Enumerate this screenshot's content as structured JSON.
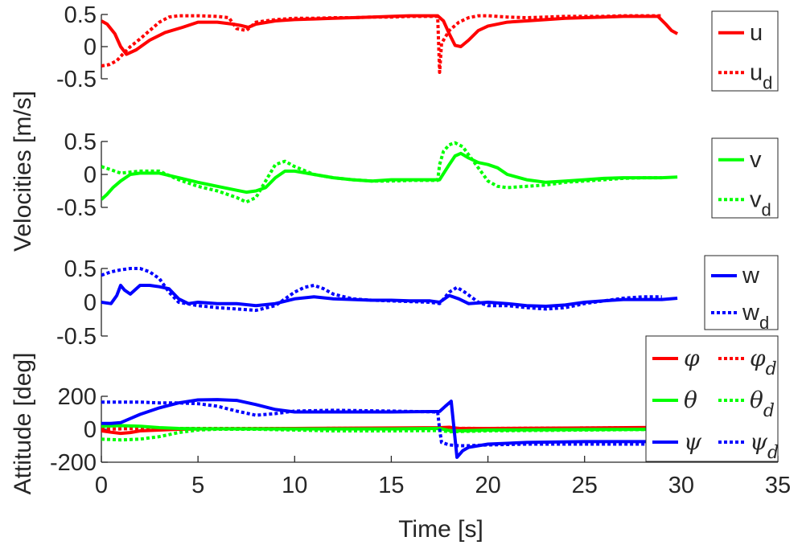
{
  "chart_data": [
    {
      "type": "line",
      "panel": "u",
      "title": "",
      "xlabel": "",
      "ylabel": "",
      "xlim": [
        0,
        35
      ],
      "ylim": [
        -0.5,
        0.5
      ],
      "yticks": [
        0.5,
        0,
        -0.5
      ],
      "ytick_labels": [
        "0.5",
        "0",
        "-0.5"
      ],
      "legend": "top-right",
      "series": [
        {
          "name": "u",
          "label_main": "u",
          "label_sub": "",
          "color": "#ff0000",
          "style": "solid",
          "x": [
            0,
            0.3,
            0.7,
            1.0,
            1.3,
            1.8,
            2.5,
            3.3,
            4.2,
            5.0,
            6.0,
            6.8,
            7.2,
            7.6,
            8.0,
            9.0,
            10.0,
            11.0,
            12.0,
            13.0,
            14.0,
            15.0,
            16.0,
            17.0,
            17.4,
            17.7,
            18.0,
            18.3,
            18.6,
            19.0,
            19.5,
            20.0,
            21.0,
            22.0,
            23.0,
            24.0,
            25.0,
            26.0,
            27.0,
            28.0,
            28.8,
            29.2,
            29.5,
            29.8
          ],
          "y": [
            0.4,
            0.35,
            0.2,
            0.0,
            -0.12,
            -0.05,
            0.1,
            0.22,
            0.3,
            0.38,
            0.38,
            0.35,
            0.33,
            0.3,
            0.35,
            0.4,
            0.42,
            0.43,
            0.44,
            0.45,
            0.46,
            0.47,
            0.48,
            0.48,
            0.48,
            0.4,
            0.2,
            0.02,
            0.0,
            0.1,
            0.25,
            0.32,
            0.38,
            0.4,
            0.42,
            0.44,
            0.45,
            0.46,
            0.47,
            0.47,
            0.47,
            0.35,
            0.25,
            0.2
          ]
        },
        {
          "name": "u_d",
          "label_main": "u",
          "label_sub": "d",
          "color": "#ff0000",
          "style": "dotted",
          "x": [
            0,
            0.4,
            0.8,
            1.1,
            1.5,
            2.0,
            2.5,
            3.0,
            3.5,
            4.0,
            5.0,
            6.0,
            6.6,
            7.0,
            7.5,
            8.0,
            9.0,
            10.0,
            11.0,
            12.0,
            13.0,
            14.0,
            15.0,
            16.0,
            17.0,
            17.4,
            17.5,
            17.6,
            18.0,
            18.5,
            19.0,
            19.5,
            20.0,
            21.0,
            22.0,
            23.0,
            24.0,
            25.0,
            26.0,
            27.0,
            28.0,
            29.0
          ],
          "y": [
            -0.3,
            -0.28,
            -0.22,
            -0.12,
            0.0,
            0.12,
            0.25,
            0.38,
            0.46,
            0.48,
            0.48,
            0.47,
            0.45,
            0.28,
            0.25,
            0.38,
            0.42,
            0.44,
            0.44,
            0.45,
            0.45,
            0.46,
            0.46,
            0.47,
            0.47,
            0.47,
            -0.4,
            0.05,
            0.25,
            0.38,
            0.45,
            0.48,
            0.48,
            0.46,
            0.45,
            0.46,
            0.47,
            0.47,
            0.47,
            0.48,
            0.48,
            0.48
          ]
        }
      ]
    },
    {
      "type": "line",
      "panel": "v",
      "title": "",
      "xlabel": "",
      "ylabel": "",
      "xlim": [
        0,
        35
      ],
      "ylim": [
        -0.5,
        0.5
      ],
      "yticks": [
        0.5,
        0,
        -0.5
      ],
      "ytick_labels": [
        "0.5",
        "0",
        "-0.5"
      ],
      "legend": "top-right",
      "series": [
        {
          "name": "v",
          "label_main": "v",
          "label_sub": "",
          "color": "#00ff00",
          "style": "solid",
          "x": [
            0,
            0.3,
            0.6,
            1.0,
            1.5,
            2.0,
            3.0,
            4.0,
            5.0,
            6.0,
            7.0,
            7.5,
            8.0,
            8.5,
            9.0,
            9.5,
            10.0,
            11.0,
            12.0,
            13.0,
            14.0,
            15.0,
            16.0,
            17.0,
            17.5,
            18.0,
            18.3,
            18.6,
            19.0,
            19.5,
            20.0,
            20.5,
            21.0,
            22.0,
            23.0,
            24.0,
            25.0,
            26.0,
            27.0,
            28.0,
            29.0,
            29.8
          ],
          "y": [
            -0.38,
            -0.3,
            -0.2,
            -0.1,
            0.0,
            0.02,
            0.02,
            -0.05,
            -0.12,
            -0.18,
            -0.24,
            -0.27,
            -0.25,
            -0.2,
            -0.05,
            0.05,
            0.05,
            0.0,
            -0.05,
            -0.08,
            -0.1,
            -0.08,
            -0.08,
            -0.08,
            -0.08,
            0.15,
            0.28,
            0.32,
            0.25,
            0.18,
            0.15,
            0.1,
            0.0,
            -0.08,
            -0.12,
            -0.1,
            -0.08,
            -0.06,
            -0.05,
            -0.05,
            -0.05,
            -0.04
          ]
        },
        {
          "name": "v_d",
          "label_main": "v",
          "label_sub": "d",
          "color": "#00ff00",
          "style": "dotted",
          "x": [
            0,
            0.4,
            1.0,
            2.0,
            3.0,
            4.0,
            5.0,
            6.0,
            7.0,
            7.5,
            8.0,
            8.5,
            9.0,
            9.5,
            10.0,
            11.0,
            12.0,
            13.0,
            14.0,
            15.0,
            16.0,
            17.0,
            17.4,
            17.5,
            17.7,
            18.0,
            18.3,
            18.7,
            19.0,
            19.5,
            20.0,
            20.5,
            21.0,
            22.0,
            23.0,
            24.0,
            25.0,
            26.0,
            27.0,
            28.0,
            29.0
          ],
          "y": [
            0.12,
            0.08,
            0.02,
            0.05,
            0.05,
            -0.08,
            -0.18,
            -0.25,
            -0.35,
            -0.42,
            -0.35,
            -0.1,
            0.15,
            0.2,
            0.12,
            0.0,
            -0.05,
            -0.08,
            -0.1,
            -0.1,
            -0.09,
            -0.09,
            -0.09,
            0.15,
            0.35,
            0.45,
            0.48,
            0.42,
            0.3,
            0.1,
            -0.1,
            -0.18,
            -0.2,
            -0.18,
            -0.16,
            -0.12,
            -0.1,
            -0.08,
            -0.06,
            -0.05,
            -0.05
          ]
        }
      ]
    },
    {
      "type": "line",
      "panel": "w",
      "title": "",
      "xlabel": "",
      "ylabel": "",
      "xlim": [
        0,
        35
      ],
      "ylim": [
        -0.5,
        0.5
      ],
      "yticks": [
        0.5,
        0,
        -0.5
      ],
      "ytick_labels": [
        "0.5",
        "0",
        "-0.5"
      ],
      "legend": "top-right",
      "series": [
        {
          "name": "w",
          "label_main": "w",
          "label_sub": "",
          "color": "#0000ff",
          "style": "solid",
          "x": [
            0,
            0.5,
            0.8,
            1.0,
            1.2,
            1.5,
            2.0,
            2.5,
            3.0,
            3.5,
            4.0,
            4.5,
            5.0,
            6.0,
            7.0,
            8.0,
            9.0,
            10.0,
            11.0,
            12.0,
            13.0,
            14.0,
            15.0,
            16.0,
            17.0,
            17.5,
            18.0,
            18.5,
            19.0,
            20.0,
            21.0,
            22.0,
            23.0,
            24.0,
            25.0,
            26.0,
            27.0,
            28.0,
            29.0,
            29.8
          ],
          "y": [
            0.0,
            -0.02,
            0.1,
            0.25,
            0.18,
            0.12,
            0.25,
            0.25,
            0.23,
            0.2,
            0.05,
            -0.02,
            0.0,
            -0.02,
            -0.02,
            -0.05,
            -0.02,
            0.05,
            0.08,
            0.05,
            0.04,
            0.03,
            0.03,
            0.02,
            0.02,
            0.0,
            0.1,
            0.05,
            -0.02,
            0.0,
            -0.02,
            -0.05,
            -0.06,
            -0.04,
            0.0,
            0.02,
            0.04,
            0.04,
            0.04,
            0.06
          ]
        },
        {
          "name": "w_d",
          "label_main": "w",
          "label_sub": "d",
          "color": "#0000ff",
          "style": "dotted",
          "x": [
            0,
            0.5,
            1.0,
            1.5,
            2.0,
            2.5,
            3.0,
            3.5,
            4.0,
            5.0,
            6.0,
            7.0,
            8.0,
            9.0,
            10.0,
            10.5,
            11.0,
            11.5,
            12.0,
            13.0,
            14.0,
            15.0,
            16.0,
            17.0,
            17.5,
            18.0,
            18.4,
            18.8,
            19.5,
            20.0,
            21.0,
            22.0,
            23.0,
            24.0,
            25.0,
            26.0,
            27.0,
            28.0,
            29.0
          ],
          "y": [
            0.4,
            0.45,
            0.48,
            0.5,
            0.5,
            0.45,
            0.35,
            0.15,
            0.0,
            -0.05,
            -0.08,
            -0.1,
            -0.12,
            -0.05,
            0.15,
            0.22,
            0.25,
            0.2,
            0.12,
            0.05,
            0.03,
            0.02,
            0.01,
            0.0,
            -0.02,
            0.15,
            0.22,
            0.15,
            0.0,
            -0.05,
            -0.05,
            -0.08,
            -0.1,
            -0.08,
            -0.02,
            0.02,
            0.06,
            0.08,
            0.08
          ]
        }
      ]
    },
    {
      "type": "line",
      "panel": "attitude",
      "title": "",
      "xlabel": "Time [s]",
      "ylabel": "Attitude [deg]",
      "xlim": [
        0,
        35
      ],
      "ylim": [
        -200,
        200
      ],
      "yticks": [
        200,
        0,
        -200
      ],
      "ytick_labels": [
        "200",
        "0",
        "-200"
      ],
      "xticks": [
        0,
        5,
        10,
        15,
        20,
        25,
        30,
        35
      ],
      "xtick_labels": [
        "0",
        "5",
        "10",
        "15",
        "20",
        "25",
        "30",
        "35"
      ],
      "legend": "top-right",
      "series": [
        {
          "name": "phi",
          "label_main": "φ",
          "label_sub": "",
          "color": "#ff0000",
          "style": "solid",
          "x": [
            0,
            0.5,
            1.0,
            1.5,
            2.0,
            3.0,
            4.0,
            5.0,
            10.0,
            15.0,
            17.5,
            18.0,
            18.5,
            20.0,
            25.0,
            30.0
          ],
          "y": [
            -10,
            -18,
            -25,
            -20,
            -10,
            -5,
            0,
            2,
            5,
            8,
            10,
            12,
            5,
            5,
            8,
            12
          ]
        },
        {
          "name": "phi_d",
          "label_main": "φ",
          "label_sub": "d",
          "color": "#ff0000",
          "style": "dotted",
          "x": [
            0,
            2.0,
            4.0,
            10.0,
            15.0,
            18.0,
            20.0,
            25.0,
            30.0
          ],
          "y": [
            0,
            5,
            5,
            5,
            6,
            6,
            5,
            8,
            10
          ]
        },
        {
          "name": "theta",
          "label_main": "θ",
          "label_sub": "",
          "color": "#00ff00",
          "style": "solid",
          "x": [
            0,
            0.5,
            1.0,
            1.5,
            2.0,
            3.0,
            4.0,
            5.0,
            10.0,
            15.0,
            17.5,
            18.0,
            18.5,
            20.0,
            25.0,
            30.0
          ],
          "y": [
            18,
            20,
            22,
            20,
            18,
            10,
            5,
            3,
            2,
            2,
            5,
            -8,
            -10,
            -5,
            -2,
            0
          ]
        },
        {
          "name": "theta_d",
          "label_main": "θ",
          "label_sub": "d",
          "color": "#00ff00",
          "style": "dotted",
          "x": [
            0,
            1.0,
            2.0,
            3.0,
            4.0,
            5.0,
            6.0,
            8.0,
            10.0,
            12.0,
            15.0,
            17.5,
            18.0,
            20.0,
            25.0,
            30.0
          ],
          "y": [
            -60,
            -65,
            -60,
            -45,
            -20,
            -5,
            0,
            0,
            -5,
            -10,
            -10,
            -8,
            -15,
            -10,
            -5,
            0
          ]
        },
        {
          "name": "psi",
          "label_main": "ψ",
          "label_sub": "",
          "color": "#0000ff",
          "style": "solid",
          "x": [
            0,
            0.5,
            1.0,
            1.5,
            2.0,
            3.0,
            4.0,
            5.0,
            6.0,
            7.0,
            8.0,
            9.0,
            10.0,
            12.0,
            15.0,
            17.5,
            17.8,
            18.1,
            18.4,
            18.7,
            19.0,
            20.0,
            22.0,
            25.0,
            28.0,
            30.0
          ],
          "y": [
            35,
            35,
            40,
            65,
            90,
            130,
            160,
            178,
            180,
            175,
            150,
            120,
            105,
            105,
            105,
            108,
            140,
            170,
            -170,
            -130,
            -110,
            -90,
            -80,
            -75,
            -75,
            -75
          ]
        },
        {
          "name": "psi_d",
          "label_main": "ψ",
          "label_sub": "d",
          "color": "#0000ff",
          "style": "dotted",
          "x": [
            0,
            1.0,
            2.0,
            3.0,
            4.0,
            5.0,
            6.0,
            7.0,
            8.0,
            9.0,
            10.0,
            12.0,
            15.0,
            17.4,
            17.5,
            17.6,
            18.0,
            18.5,
            19.0,
            20.0,
            22.0,
            25.0,
            28.0,
            30.0
          ],
          "y": [
            165,
            165,
            165,
            160,
            160,
            155,
            140,
            110,
            85,
            95,
            110,
            115,
            110,
            105,
            0,
            -80,
            -95,
            -100,
            -100,
            -95,
            -90,
            -90,
            -90,
            -90
          ]
        }
      ]
    }
  ],
  "shared_ylabel_velocities": "Velocities [m/s]"
}
